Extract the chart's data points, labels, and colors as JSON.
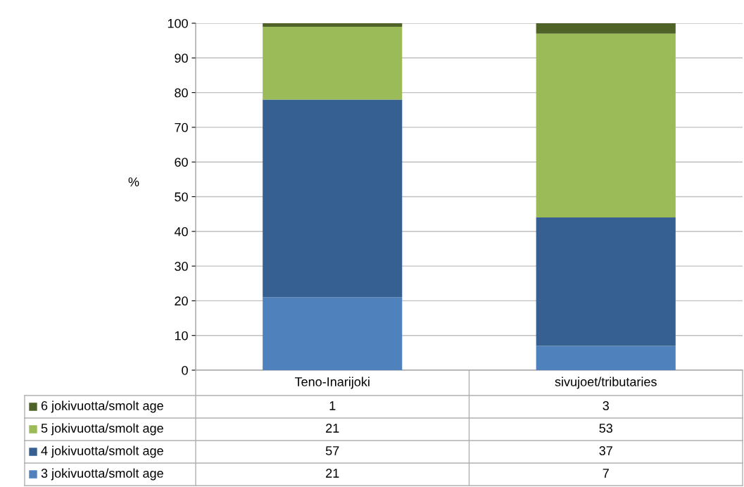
{
  "chart_data": {
    "type": "bar",
    "stacked": true,
    "ylabel": "%",
    "categories": [
      "Teno-Inarijoki",
      "sivujoet/tributaries"
    ],
    "series": [
      {
        "name": "3 jokivuotta/smolt age",
        "color": "#4f81bd",
        "values": [
          21,
          7
        ]
      },
      {
        "name": "4 jokivuotta/smolt age",
        "color": "#366092",
        "values": [
          57,
          37
        ]
      },
      {
        "name": "5 jokivuotta/smolt age",
        "color": "#9bbb59",
        "values": [
          21,
          53
        ]
      },
      {
        "name": "6 jokivuotta/smolt age",
        "color": "#4f6228",
        "values": [
          1,
          3
        ]
      }
    ],
    "ylim": [
      0,
      100
    ],
    "yticks": [
      0,
      10,
      20,
      30,
      40,
      50,
      60,
      70,
      80,
      90,
      100
    ],
    "grid": "y",
    "legend": "bottom",
    "data_labels": true
  }
}
